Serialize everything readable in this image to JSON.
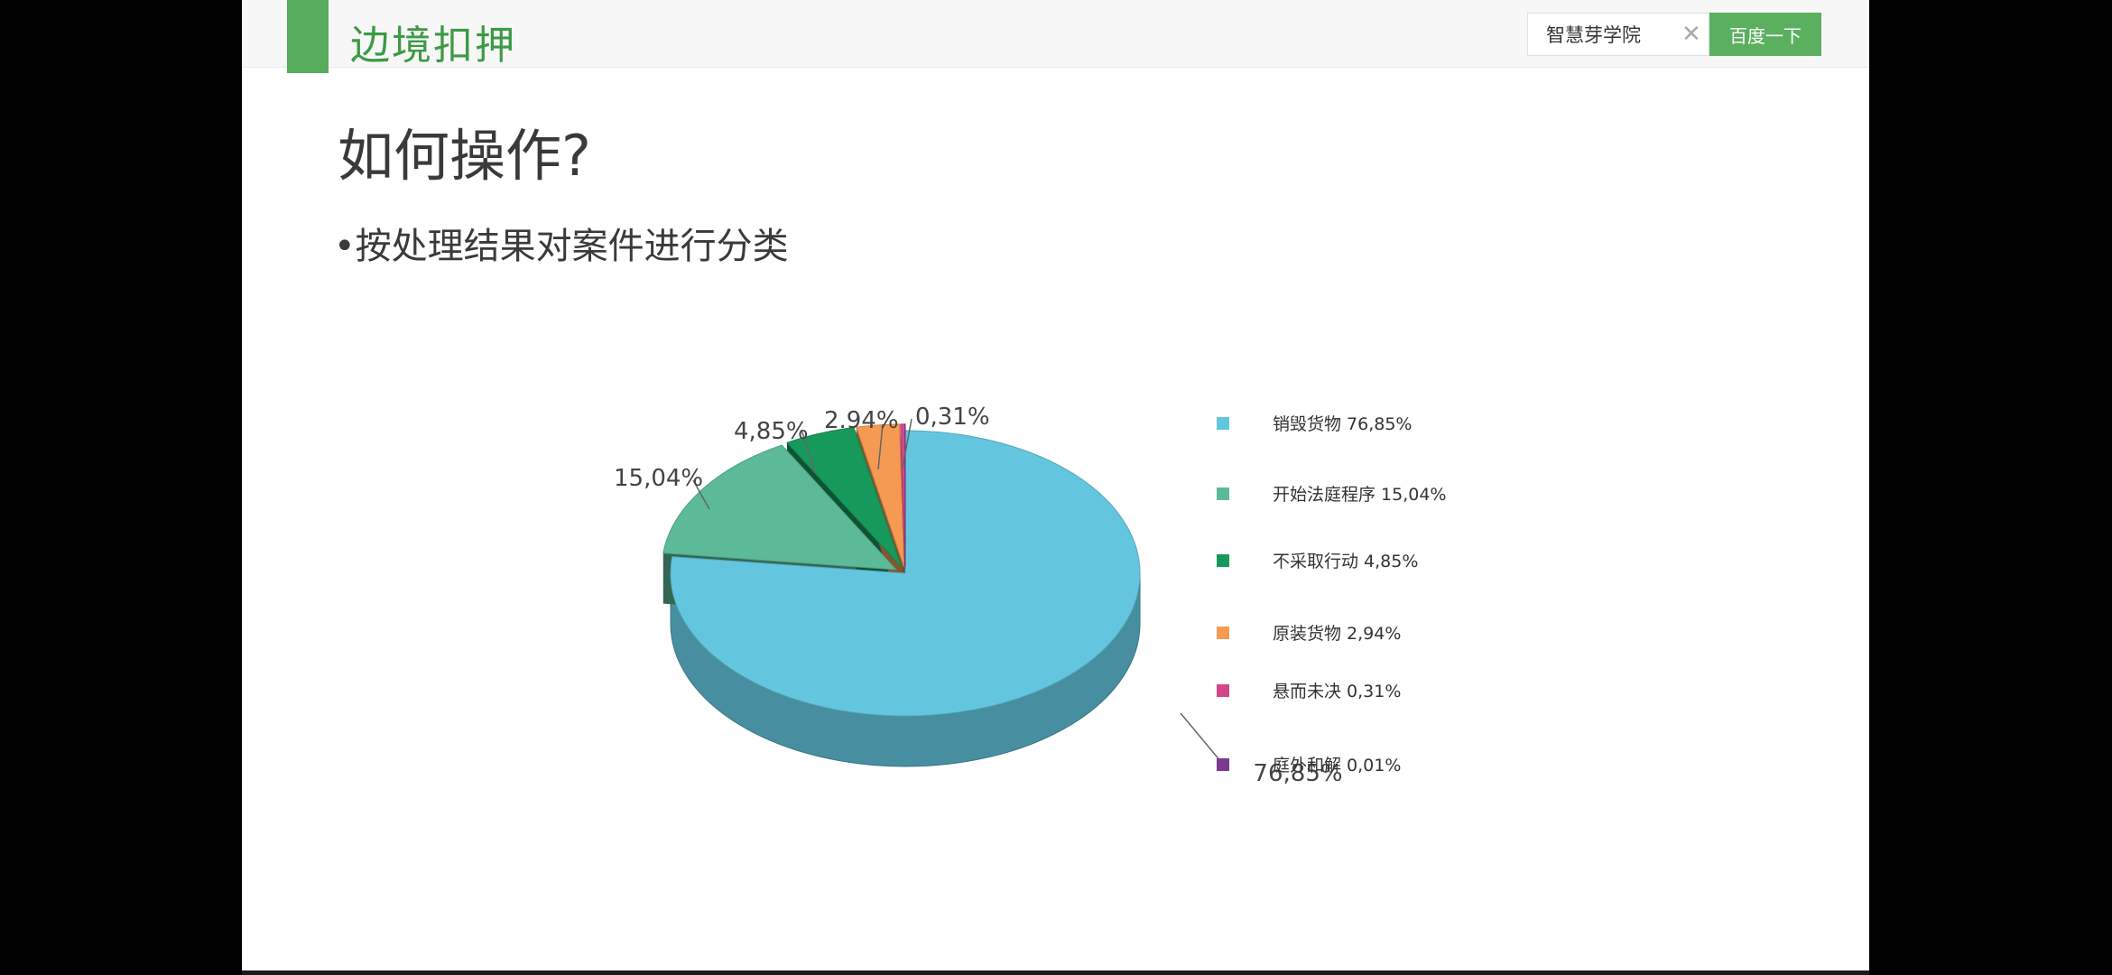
{
  "header": {
    "title": "边境扣押",
    "search": {
      "value": "智慧芽学院",
      "button_label": "百度一下"
    }
  },
  "slide": {
    "title": "如何操作?",
    "bullet": "•按处理结果对案件进行分类"
  },
  "colors": {
    "accent": "#5ab05e",
    "title_green": "#3c9a45"
  },
  "chart_data": {
    "type": "pie",
    "title": "",
    "style": "3d",
    "legend_position": "right",
    "slices": [
      {
        "label": "销毁货物",
        "legend_text": "销毁货物  76,85%",
        "value": 76.85,
        "data_label": "76,85%",
        "color": "#63c6de"
      },
      {
        "label": "开始法庭程序",
        "legend_text": "开始法庭程序 15,04%",
        "value": 15.04,
        "data_label": "15,04%",
        "color": "#5dba98"
      },
      {
        "label": "不采取行动",
        "legend_text": "不采取行动 4,85%",
        "value": 4.85,
        "data_label": "4,85%",
        "color": "#17995c"
      },
      {
        "label": "原装货物",
        "legend_text": "原装货物 2,94%",
        "value": 2.94,
        "data_label": "2.94%",
        "color": "#f59a52"
      },
      {
        "label": "悬而未决",
        "legend_text": "悬而未决 0,31%",
        "value": 0.31,
        "data_label": "0,31%",
        "color": "#d4478a"
      },
      {
        "label": "庭外和解",
        "legend_text": "庭外和解 0,01%",
        "value": 0.01,
        "data_label": "",
        "color": "#7b3a8f"
      }
    ]
  }
}
